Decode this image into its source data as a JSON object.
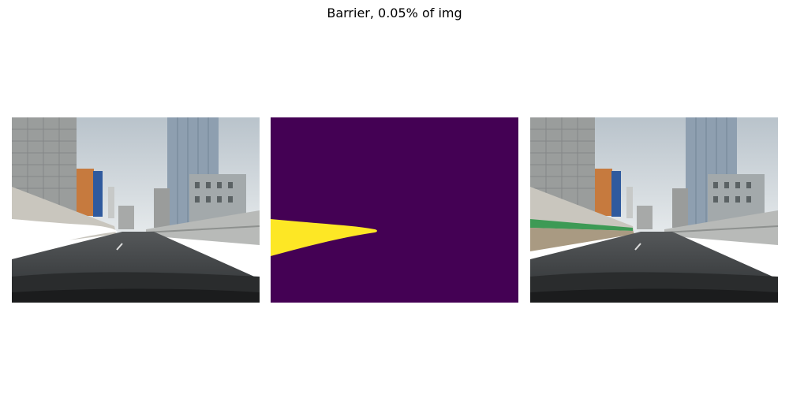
{
  "figure": {
    "title": "Barrier, 0.05% of img"
  },
  "colors": {
    "mask_background": "#440154",
    "mask_foreground": "#fde725",
    "overlay_masked_region": "#ffffff",
    "barrier_highlight": "#3d9a55",
    "sky": "#cfd6dc",
    "road": "#3f4244"
  },
  "panels": [
    {
      "name": "masked-road-image"
    },
    {
      "name": "segmentation-mask"
    },
    {
      "name": "original-road-image"
    }
  ]
}
